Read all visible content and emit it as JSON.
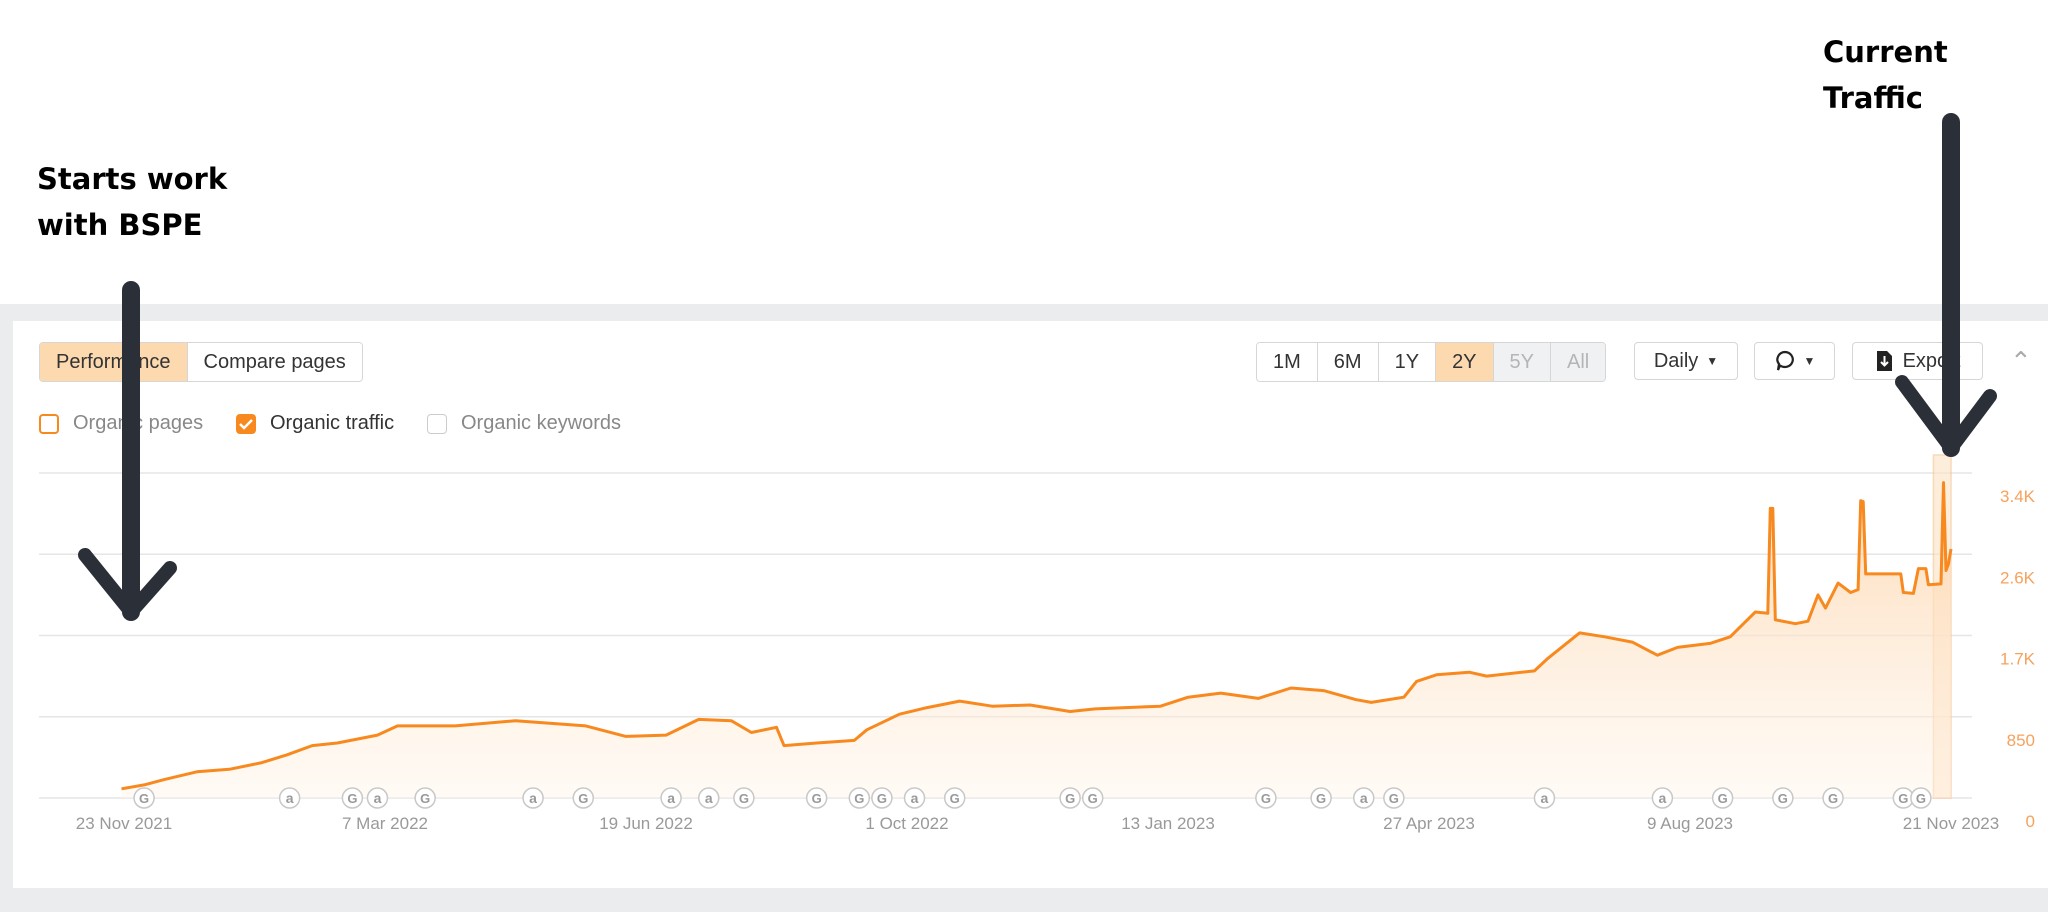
{
  "annotations": {
    "left_line1": "Starts work",
    "left_line2": "with BSPE",
    "right": "Current Traffic"
  },
  "tabs": [
    {
      "label": "Performance",
      "active": true
    },
    {
      "label": "Compare pages",
      "active": false
    }
  ],
  "series_toggles": [
    {
      "label": "Organic pages",
      "checked": false,
      "color": "#f7891f"
    },
    {
      "label": "Organic traffic",
      "checked": true,
      "color": "#f7891f"
    },
    {
      "label": "Organic keywords",
      "checked": false,
      "color": "#cccccc"
    }
  ],
  "periods": [
    {
      "label": "1M",
      "state": "normal"
    },
    {
      "label": "6M",
      "state": "normal"
    },
    {
      "label": "1Y",
      "state": "normal"
    },
    {
      "label": "2Y",
      "state": "active"
    },
    {
      "label": "5Y",
      "state": "disabled"
    },
    {
      "label": "All",
      "state": "disabled"
    }
  ],
  "interval": {
    "label": "Daily",
    "icon": "caret-down-icon"
  },
  "comment_button": {
    "icon": "comment-icon"
  },
  "export_button": {
    "label": "Export",
    "icon": "download-file-icon"
  },
  "collapse_icon": "chevron-up-icon",
  "colors": {
    "accent": "#f7891f",
    "active_bg": "#fdd9b0",
    "axis_label": "#f5a25d"
  },
  "chart_data": {
    "type": "area",
    "ylim": [
      0,
      3400
    ],
    "y_ticks": [
      {
        "v": 0,
        "label": "0"
      },
      {
        "v": 850,
        "label": "850"
      },
      {
        "v": 1700,
        "label": "1.7K"
      },
      {
        "v": 2550,
        "label": "2.6K"
      },
      {
        "v": 3400,
        "label": "3.4K"
      }
    ],
    "x_ticks": [
      "23 Nov 2021",
      "7 Mar 2022",
      "19 Jun 2022",
      "1 Oct 2022",
      "13 Jan 2023",
      "27 Apr 2023",
      "9 Aug 2023",
      "21 Nov 2023"
    ],
    "x_tick_dates": [
      "2021-11-23",
      "2022-03-07",
      "2022-06-19",
      "2022-10-01",
      "2023-01-13",
      "2023-04-27",
      "2023-08-09",
      "2023-11-21"
    ],
    "grid": true,
    "highlight_range": [
      "2023-11-14",
      "2023-11-21"
    ],
    "series": [
      {
        "name": "Organic traffic",
        "color": "#f7891f",
        "points": [
          [
            "2021-11-22",
            96
          ],
          [
            "2021-12-01",
            137
          ],
          [
            "2021-12-09",
            192
          ],
          [
            "2021-12-22",
            274
          ],
          [
            "2022-01-04",
            300
          ],
          [
            "2022-01-17",
            370
          ],
          [
            "2022-01-27",
            452
          ],
          [
            "2022-02-06",
            548
          ],
          [
            "2022-02-16",
            575
          ],
          [
            "2022-03-04",
            658
          ],
          [
            "2022-03-12",
            754
          ],
          [
            "2022-04-04",
            754
          ],
          [
            "2022-04-28",
            809
          ],
          [
            "2022-05-26",
            754
          ],
          [
            "2022-06-11",
            644
          ],
          [
            "2022-06-27",
            658
          ],
          [
            "2022-07-10",
            822
          ],
          [
            "2022-07-23",
            809
          ],
          [
            "2022-07-31",
            685
          ],
          [
            "2022-08-10",
            740
          ],
          [
            "2022-08-13",
            548
          ],
          [
            "2022-08-26",
            575
          ],
          [
            "2022-09-10",
            603
          ],
          [
            "2022-09-15",
            713
          ],
          [
            "2022-09-28",
            877
          ],
          [
            "2022-10-09",
            946
          ],
          [
            "2022-10-22",
            1014
          ],
          [
            "2022-11-04",
            960
          ],
          [
            "2022-11-19",
            973
          ],
          [
            "2022-12-05",
            905
          ],
          [
            "2022-12-15",
            932
          ],
          [
            "2023-01-10",
            960
          ],
          [
            "2023-01-21",
            1055
          ],
          [
            "2023-02-03",
            1097
          ],
          [
            "2023-02-18",
            1042
          ],
          [
            "2023-03-03",
            1151
          ],
          [
            "2023-03-16",
            1124
          ],
          [
            "2023-03-29",
            1028
          ],
          [
            "2023-04-04",
            1000
          ],
          [
            "2023-04-17",
            1055
          ],
          [
            "2023-04-22",
            1220
          ],
          [
            "2023-04-30",
            1289
          ],
          [
            "2023-05-13",
            1316
          ],
          [
            "2023-05-20",
            1275
          ],
          [
            "2023-06-08",
            1330
          ],
          [
            "2023-06-13",
            1453
          ],
          [
            "2023-06-26",
            1727
          ],
          [
            "2023-07-06",
            1686
          ],
          [
            "2023-07-17",
            1631
          ],
          [
            "2023-07-27",
            1494
          ],
          [
            "2023-08-04",
            1576
          ],
          [
            "2023-08-17",
            1617
          ],
          [
            "2023-08-25",
            1686
          ],
          [
            "2023-09-04",
            1946
          ],
          [
            "2023-09-09",
            1932
          ],
          [
            "2023-09-10",
            3030
          ],
          [
            "2023-09-11",
            3030
          ],
          [
            "2023-09-12",
            1864
          ],
          [
            "2023-09-20",
            1823
          ],
          [
            "2023-09-25",
            1850
          ],
          [
            "2023-09-29",
            2125
          ],
          [
            "2023-10-02",
            1987
          ],
          [
            "2023-10-07",
            2248
          ],
          [
            "2023-10-12",
            2150
          ],
          [
            "2023-10-15",
            2180
          ],
          [
            "2023-10-16",
            3110
          ],
          [
            "2023-10-17",
            3100
          ],
          [
            "2023-10-18",
            2344
          ],
          [
            "2023-11-01",
            2344
          ],
          [
            "2023-11-02",
            2150
          ],
          [
            "2023-11-06",
            2140
          ],
          [
            "2023-11-08",
            2400
          ],
          [
            "2023-11-11",
            2400
          ],
          [
            "2023-11-12",
            2230
          ],
          [
            "2023-11-17",
            2240
          ],
          [
            "2023-11-18",
            3300
          ],
          [
            "2023-11-19",
            2380
          ],
          [
            "2023-11-20",
            2450
          ],
          [
            "2023-11-21",
            2605
          ]
        ]
      }
    ],
    "event_markers": [
      [
        "2021-12-01",
        "G"
      ],
      [
        "2022-01-28",
        "a"
      ],
      [
        "2022-02-22",
        "G"
      ],
      [
        "2022-03-04",
        "a"
      ],
      [
        "2022-03-23",
        "G"
      ],
      [
        "2022-05-05",
        "a"
      ],
      [
        "2022-05-25",
        "G"
      ],
      [
        "2022-06-29",
        "a"
      ],
      [
        "2022-07-14",
        "a"
      ],
      [
        "2022-07-28",
        "G"
      ],
      [
        "2022-08-26",
        "G"
      ],
      [
        "2022-09-12",
        "G"
      ],
      [
        "2022-09-21",
        "G"
      ],
      [
        "2022-10-04",
        "a"
      ],
      [
        "2022-10-20",
        "G"
      ],
      [
        "2022-12-05",
        "G"
      ],
      [
        "2022-12-14",
        "G"
      ],
      [
        "2023-02-21",
        "G"
      ],
      [
        "2023-03-15",
        "G"
      ],
      [
        "2023-04-01",
        "a"
      ],
      [
        "2023-04-13",
        "G"
      ],
      [
        "2023-06-12",
        "a"
      ],
      [
        "2023-07-29",
        "a"
      ],
      [
        "2023-08-22",
        "G"
      ],
      [
        "2023-09-15",
        "G"
      ],
      [
        "2023-10-05",
        "G"
      ],
      [
        "2023-11-02",
        "G"
      ],
      [
        "2023-11-09",
        "G"
      ]
    ]
  }
}
